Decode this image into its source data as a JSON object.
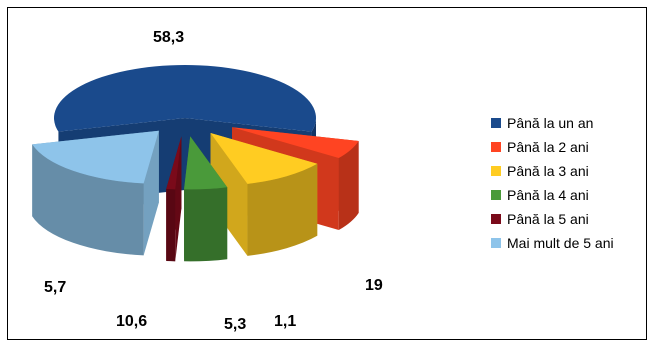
{
  "chart_data": {
    "type": "pie",
    "categories": [
      "Până la un an",
      "Până la 2 ani",
      "Până la 3 ani",
      "Până la 4 ani",
      "Până la 5 ani",
      "Mai mult de 5 ani"
    ],
    "values": [
      58.3,
      5.7,
      10.6,
      5.3,
      1.1,
      19
    ],
    "data_labels": [
      "58,3",
      "5,7",
      "10,6",
      "5,3",
      "1,1",
      "19"
    ],
    "colors": [
      "#1a4a8c",
      "#ff4422",
      "#ffcc22",
      "#4a9a3a",
      "#7a0a1a",
      "#8ec4ea"
    ],
    "exploded": true,
    "three_d": true,
    "legend_position": "right"
  }
}
